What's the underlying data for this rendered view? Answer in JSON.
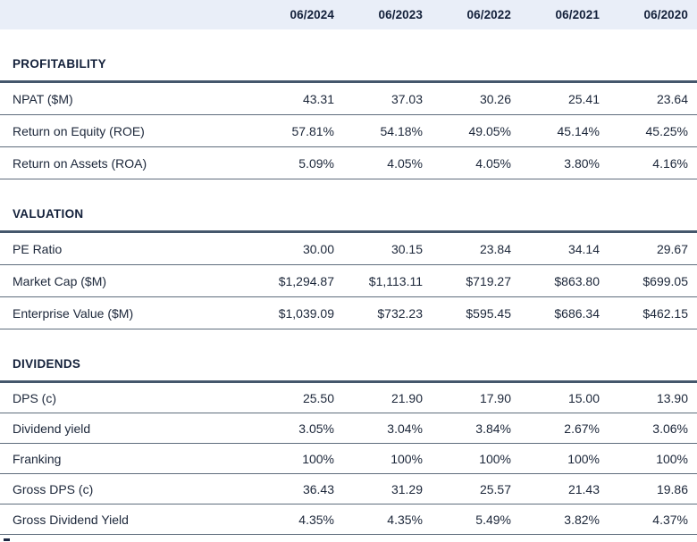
{
  "chart_data": {
    "type": "table",
    "column_headers": [
      "06/2024",
      "06/2023",
      "06/2022",
      "06/2021",
      "06/2020"
    ],
    "sections": [
      {
        "title": "PROFITABILITY",
        "rows": [
          {
            "label": "NPAT ($M)",
            "values": [
              "43.31",
              "37.03",
              "30.26",
              "25.41",
              "23.64"
            ]
          },
          {
            "label": "Return on Equity (ROE)",
            "values": [
              "57.81%",
              "54.18%",
              "49.05%",
              "45.14%",
              "45.25%"
            ]
          },
          {
            "label": "Return on Assets (ROA)",
            "values": [
              "5.09%",
              "4.05%",
              "4.05%",
              "3.80%",
              "4.16%"
            ]
          }
        ]
      },
      {
        "title": "VALUATION",
        "rows": [
          {
            "label": "PE Ratio",
            "values": [
              "30.00",
              "30.15",
              "23.84",
              "34.14",
              "29.67"
            ]
          },
          {
            "label": "Market Cap ($M)",
            "values": [
              "$1,294.87",
              "$1,113.11",
              "$719.27",
              "$863.80",
              "$699.05"
            ]
          },
          {
            "label": "Enterprise Value ($M)",
            "values": [
              "$1,039.09",
              "$732.23",
              "$595.45",
              "$686.34",
              "$462.15"
            ]
          }
        ]
      },
      {
        "title": "DIVIDENDS",
        "rows": [
          {
            "label": "DPS (c)",
            "values": [
              "25.50",
              "21.90",
              "17.90",
              "15.00",
              "13.90"
            ]
          },
          {
            "label": "Dividend yield",
            "values": [
              "3.05%",
              "3.04%",
              "3.84%",
              "2.67%",
              "3.06%"
            ]
          },
          {
            "label": "Franking",
            "values": [
              "100%",
              "100%",
              "100%",
              "100%",
              "100%"
            ]
          },
          {
            "label": "Gross DPS (c)",
            "values": [
              "36.43",
              "31.29",
              "25.57",
              "21.43",
              "19.86"
            ]
          },
          {
            "label": "Gross Dividend Yield",
            "values": [
              "4.35%",
              "4.35%",
              "5.49%",
              "3.82%",
              "4.37%"
            ]
          }
        ]
      }
    ]
  },
  "colors": {
    "header_bg": "#e9eef8",
    "text": "#16213b",
    "section_border": "#45576c",
    "row_border": "#5e6c7c"
  }
}
